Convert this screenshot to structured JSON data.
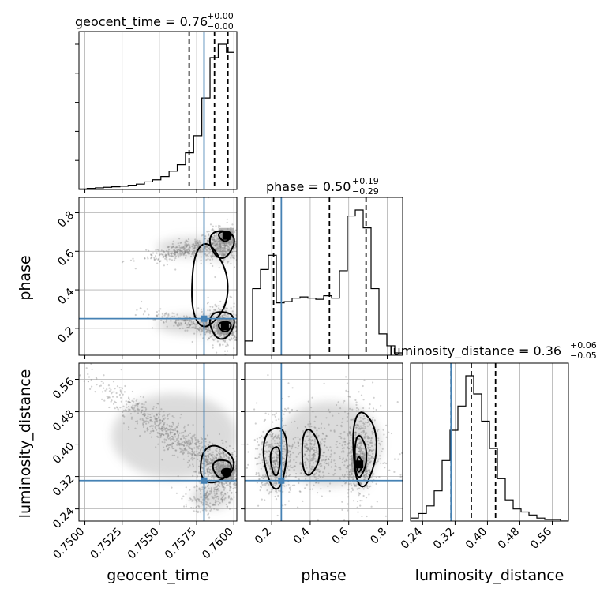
{
  "chart_data": {
    "type": "corner",
    "parameters": [
      "geocent_time",
      "phase",
      "luminosity_distance"
    ],
    "axis_labels": {
      "x": [
        "geocent_time",
        "phase",
        "luminosity_distance"
      ],
      "y": [
        "phase",
        "luminosity_distance"
      ]
    },
    "ranges": {
      "geocent_time": [
        0.7496,
        0.7602
      ],
      "phase": [
        0.06,
        0.88
      ],
      "luminosity_distance": [
        0.21,
        0.6
      ]
    },
    "ticks": {
      "geocent_time": [
        "0.7500",
        "0.7525",
        "0.7550",
        "0.7575",
        "0.7600"
      ],
      "phase": [
        "0.2",
        "0.4",
        "0.6",
        "0.8"
      ],
      "luminosity_distance": [
        "0.24",
        "0.32",
        "0.40",
        "0.48",
        "0.56"
      ]
    },
    "truth": {
      "geocent_time": 0.758,
      "phase": 0.25,
      "luminosity_distance": 0.31
    },
    "titles": {
      "geocent_time": {
        "main": "geocent_time = 0.76",
        "plus": "+0.00",
        "minus": "−0.00"
      },
      "phase": {
        "main": "phase = 0.50",
        "plus": "+0.19",
        "minus": "−0.29"
      },
      "luminosity_distance": {
        "main": "luminosity_distance = 0.36",
        "plus": "+0.06",
        "minus": "−0.05"
      }
    },
    "quantiles": {
      "geocent_time": [
        0.757,
        0.7587,
        0.7596
      ],
      "phase": [
        0.21,
        0.5,
        0.69
      ],
      "luminosity_distance": [
        0.31,
        0.36,
        0.42
      ]
    },
    "histograms": {
      "geocent_time": {
        "edges": [
          0.7496,
          0.75015,
          0.7507,
          0.75125,
          0.7518,
          0.75235,
          0.7529,
          0.75345,
          0.754,
          0.75455,
          0.7551,
          0.75565,
          0.7562,
          0.75675,
          0.7573,
          0.75785,
          0.7584,
          0.75895,
          0.7595,
          0.76
        ],
        "counts": [
          1,
          2,
          3,
          4,
          5,
          6,
          8,
          10,
          14,
          18,
          24,
          34,
          46,
          68,
          100,
          170,
          245,
          270,
          255
        ]
      },
      "phase": {
        "edges": [
          0.06,
          0.101,
          0.142,
          0.183,
          0.224,
          0.265,
          0.306,
          0.347,
          0.388,
          0.429,
          0.47,
          0.511,
          0.552,
          0.593,
          0.634,
          0.675,
          0.716,
          0.757,
          0.798,
          0.839,
          0.88
        ],
        "counts": [
          12,
          56,
          72,
          84,
          44,
          45,
          48,
          49,
          48,
          47,
          50,
          48,
          71,
          117,
          122,
          107,
          56,
          18,
          8,
          2
        ]
      },
      "luminosity_distance": {
        "edges": [
          0.21,
          0.2295,
          0.249,
          0.2685,
          0.288,
          0.3075,
          0.327,
          0.3465,
          0.366,
          0.3855,
          0.405,
          0.4245,
          0.444,
          0.4635,
          0.483,
          0.5025,
          0.522,
          0.5415,
          0.561,
          0.5805,
          0.6
        ],
        "counts": [
          2,
          5,
          10,
          20,
          40,
          60,
          76,
          96,
          84,
          66,
          48,
          28,
          14,
          8,
          6,
          4,
          2,
          1,
          1,
          0
        ]
      }
    }
  }
}
